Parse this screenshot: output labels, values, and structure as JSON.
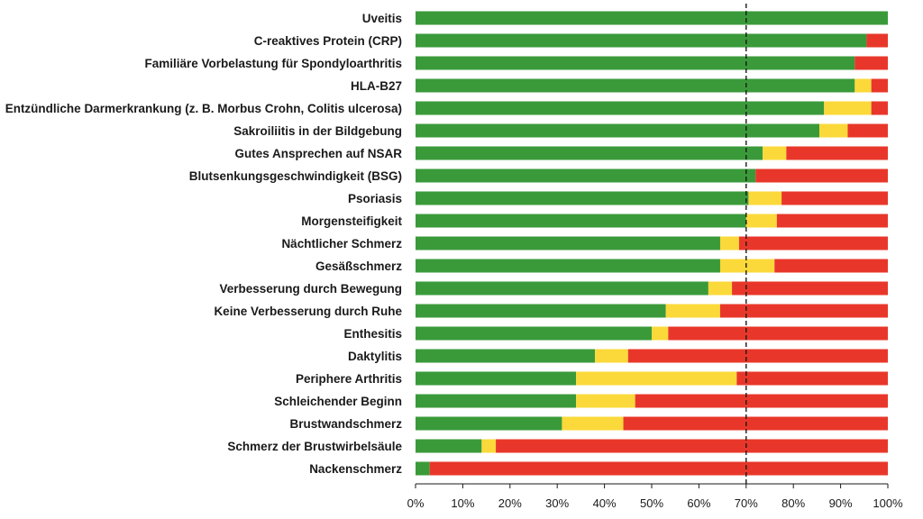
{
  "chart_data": {
    "type": "bar",
    "orientation": "horizontal",
    "stacked": true,
    "categories": [
      "Uveitis",
      "C-reaktives Protein (CRP)",
      "Familiäre Vorbelastung für Spondyloarthritis",
      "HLA-B27",
      "Entzündliche Darmerkrankung (z. B. Morbus Crohn, Colitis ulcerosa)",
      "Sakroiliitis in der Bildgebung",
      "Gutes Ansprechen auf NSAR",
      "Blutsenkungsgeschwindigkeit (BSG)",
      "Psoriasis",
      "Morgensteifigkeit",
      "Nächtlicher Schmerz",
      "Gesäßschmerz",
      "Verbesserung durch Bewegung",
      "Keine Verbesserung durch Ruhe",
      "Enthesitis",
      "Daktylitis",
      "Periphere Arthritis",
      "Schleichender Beginn",
      "Brustwandschmerz",
      "Schmerz der Brustwirbelsäule",
      "Nackenschmerz"
    ],
    "series": [
      {
        "color": "#3a9a3a",
        "values": [
          100,
          95.5,
          93,
          93,
          86.5,
          85.5,
          73.5,
          72,
          70.5,
          70,
          64.5,
          64.5,
          62,
          53,
          50,
          38,
          34,
          34,
          31,
          14,
          3
        ]
      },
      {
        "color": "#fbd93a",
        "values": [
          0,
          0,
          0,
          3.5,
          10,
          6,
          5,
          0,
          7,
          6.5,
          4,
          11.5,
          5,
          11.5,
          3.5,
          7,
          34,
          12.5,
          13,
          3,
          0
        ]
      },
      {
        "color": "#e8372a",
        "values": [
          0,
          4.5,
          7,
          3.5,
          3.5,
          8.5,
          21.5,
          28,
          22.5,
          23.5,
          31.5,
          24,
          33,
          35.5,
          46.5,
          55,
          32,
          53.5,
          56,
          83,
          97
        ]
      }
    ],
    "xlim": [
      0,
      100
    ],
    "x_ticks": [
      "0%",
      "10%",
      "20%",
      "30%",
      "40%",
      "50%",
      "60%",
      "70%",
      "80%",
      "90%",
      "100%"
    ],
    "reference_line": {
      "value": 70,
      "style": "dashed",
      "color": "#1a1a1a"
    },
    "grid": false,
    "legend": "none"
  }
}
